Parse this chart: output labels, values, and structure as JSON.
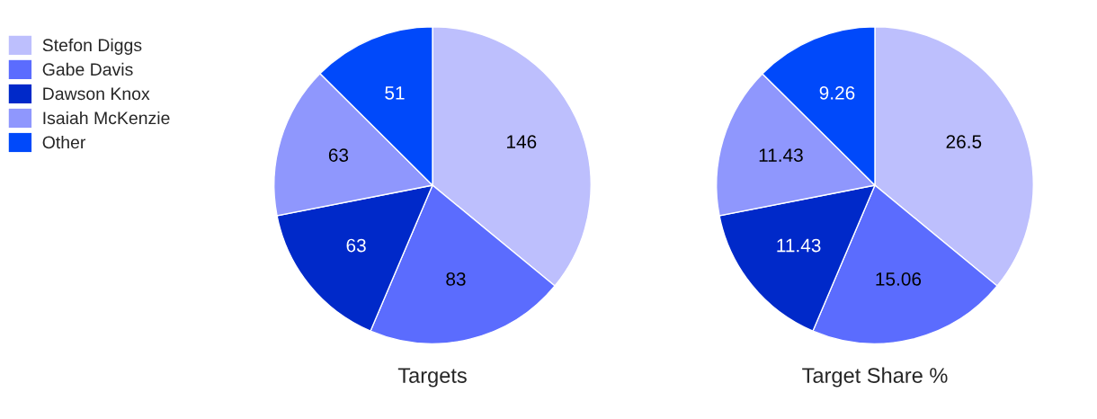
{
  "chart_data": [
    {
      "type": "pie",
      "title": "Targets",
      "categories": [
        "Stefon Diggs",
        "Gabe Davis",
        "Dawson Knox",
        "Isaiah McKenzie",
        "Other"
      ],
      "values": [
        146,
        83,
        63,
        63,
        51
      ],
      "colors": [
        "#bdbffd",
        "#5b6cfe",
        "#0029c9",
        "#8f97fd",
        "#0049fa"
      ],
      "data_labels": true,
      "legend": "left"
    },
    {
      "type": "pie",
      "title": "Target Share %",
      "categories": [
        null,
        null,
        null,
        null,
        null
      ],
      "values": [
        26.5,
        15.06,
        11.43,
        11.43,
        9.26
      ],
      "colors": [
        "#bdbffd",
        "#5b6cfe",
        "#0029c9",
        "#8f97fd",
        "#0049fa"
      ],
      "data_labels": true
    }
  ]
}
